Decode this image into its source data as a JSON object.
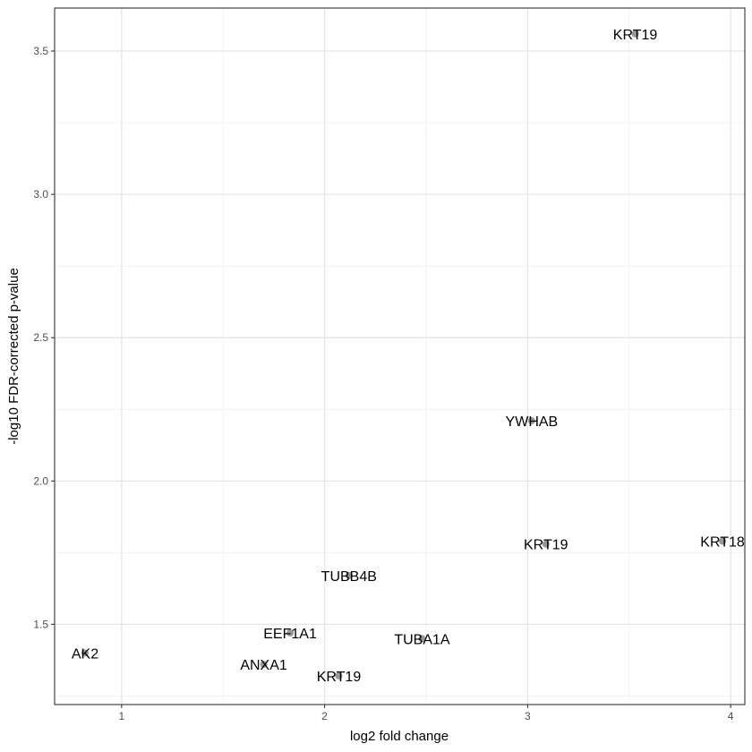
{
  "chart_data": {
    "type": "scatter",
    "title": "",
    "xlabel": "log2 fold change",
    "ylabel": "-log10 FDR-corrected p-value",
    "xlim": [
      0.67,
      4.07
    ],
    "ylim": [
      1.22,
      3.65
    ],
    "x_ticks": [
      1,
      2,
      3,
      4
    ],
    "x_tick_labels": [
      "1",
      "2",
      "3",
      "4"
    ],
    "x_minor_ticks": [
      1.5,
      2.5,
      3.5
    ],
    "y_ticks": [
      1.5,
      2.0,
      2.5,
      3.0,
      3.5
    ],
    "y_tick_labels": [
      "1.5",
      "2.0",
      "2.5",
      "3.0",
      "3.5"
    ],
    "y_minor_ticks": [
      1.25,
      1.75,
      2.25,
      2.75,
      3.25
    ],
    "grid": true,
    "legend": "none",
    "point_color": "#999999",
    "points": [
      {
        "label": "KRT19",
        "x": 3.53,
        "y": 3.56
      },
      {
        "label": "YWHAB",
        "x": 3.02,
        "y": 2.21
      },
      {
        "label": "KRT19",
        "x": 3.09,
        "y": 1.78
      },
      {
        "label": "KRT18",
        "x": 3.96,
        "y": 1.79
      },
      {
        "label": "TUBB4B",
        "x": 2.12,
        "y": 1.67
      },
      {
        "label": "EEF1A1",
        "x": 1.83,
        "y": 1.47
      },
      {
        "label": "TUBA1A",
        "x": 2.48,
        "y": 1.45
      },
      {
        "label": "AK2",
        "x": 0.82,
        "y": 1.4
      },
      {
        "label": "ANXA1",
        "x": 1.7,
        "y": 1.36
      },
      {
        "label": "KRT19",
        "x": 2.07,
        "y": 1.32
      }
    ]
  }
}
